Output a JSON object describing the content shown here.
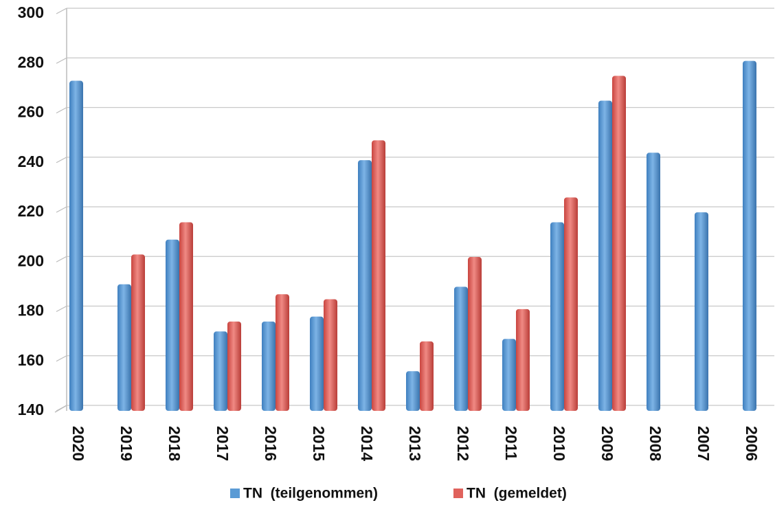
{
  "chart_data": {
    "type": "bar",
    "categories": [
      "2020",
      "2019",
      "2018",
      "2017",
      "2016",
      "2015",
      "2014",
      "2013",
      "2012",
      "2011",
      "2010",
      "2009",
      "2008",
      "2007",
      "2006"
    ],
    "series": [
      {
        "name": "TN  (teilgenommen)",
        "color": "#5b9bd5",
        "values": [
          273,
          191,
          209,
          172,
          176,
          178,
          241,
          156,
          190,
          169,
          216,
          265,
          244,
          220,
          281
        ]
      },
      {
        "name": "TN  (gemeldet)",
        "color": "#e0625c",
        "values": [
          null,
          203,
          216,
          176,
          187,
          185,
          249,
          168,
          202,
          181,
          226,
          275,
          null,
          null,
          null
        ]
      }
    ],
    "ylim": [
      140,
      300
    ],
    "yticks": [
      140,
      160,
      180,
      200,
      220,
      240,
      260,
      280,
      300
    ],
    "grid": true
  }
}
